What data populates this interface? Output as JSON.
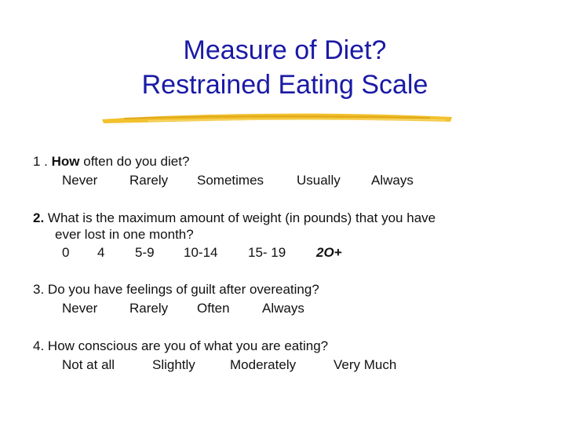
{
  "title": {
    "line1": "Measure of Diet?",
    "line2": "Restrained Eating Scale"
  },
  "questions": [
    {
      "number": "1 .",
      "lead": "How",
      "text": " often do you diet?",
      "options": [
        "Never",
        "Rarely",
        "Sometimes",
        "Usually",
        "Always"
      ]
    },
    {
      "number": "2.",
      "text_line1": " What is the maximum amount of weight (in pounds) that you have",
      "text_line2": "ever lost in one month?",
      "options": [
        "0",
        "4",
        "5-9",
        "10-14",
        "15- 19",
        "2O+"
      ]
    },
    {
      "number": "3.",
      "text": " Do you have feelings of guilt after overeating?",
      "options": [
        "Never",
        "Rarely",
        "Often",
        "Always"
      ]
    },
    {
      "number": "4.",
      "text": " How conscious are you of what you are eating?",
      "options": [
        "Not at all",
        "Slightly",
        "Moderately",
        "Very Much"
      ]
    }
  ],
  "colors": {
    "title": "#1a1aa6",
    "underline": "#f2c12e"
  }
}
